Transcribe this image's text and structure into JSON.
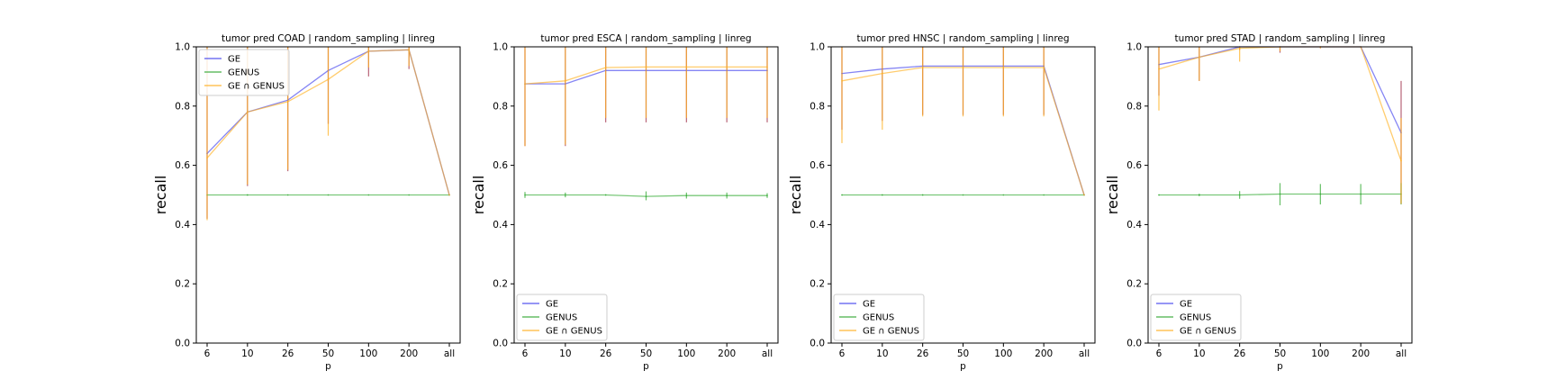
{
  "figure": {
    "background": "#ffffff"
  },
  "colors": {
    "GE": "#4444ee",
    "GENUS": "#33aa33",
    "GE ∩ GENUS": "#ffb020",
    "errorbar_GE": "#a0304a"
  },
  "chart_data": [
    {
      "type": "line",
      "title": "tumor pred COAD | random_sampling | linreg",
      "xlabel": "p",
      "ylabel": "recall",
      "categories": [
        "6",
        "10",
        "26",
        "50",
        "100",
        "200",
        "all"
      ],
      "ylim": [
        0.0,
        1.0
      ],
      "yticks": [
        "0.0",
        "0.2",
        "0.4",
        "0.6",
        "0.8",
        "1.0"
      ],
      "legend_position": "upper-left",
      "grid": false,
      "series": [
        {
          "name": "GE",
          "values": [
            0.64,
            0.78,
            0.82,
            0.92,
            0.985,
            0.99,
            0.5
          ],
          "err_low": [
            0.42,
            0.53,
            0.58,
            0.74,
            0.9,
            0.925,
            0.5
          ],
          "err_high": [
            1.0,
            1.0,
            1.0,
            1.0,
            1.0,
            1.0,
            0.5
          ]
        },
        {
          "name": "GENUS",
          "values": [
            0.5,
            0.5,
            0.5,
            0.5,
            0.5,
            0.5,
            0.5
          ],
          "err_low": [
            0.5,
            0.498,
            0.5,
            0.5,
            0.5,
            0.5,
            0.5
          ],
          "err_high": [
            0.5,
            0.502,
            0.5,
            0.5,
            0.5,
            0.5,
            0.5
          ]
        },
        {
          "name": "GE ∩ GENUS",
          "values": [
            0.625,
            0.78,
            0.815,
            0.89,
            0.985,
            0.99,
            0.5
          ],
          "err_low": [
            0.415,
            0.535,
            0.585,
            0.7,
            0.93,
            0.935,
            0.5
          ],
          "err_high": [
            1.0,
            1.0,
            1.0,
            1.0,
            1.0,
            1.0,
            0.5
          ]
        }
      ]
    },
    {
      "type": "line",
      "title": "tumor pred ESCA | random_sampling | linreg",
      "xlabel": "p",
      "ylabel": "recall",
      "categories": [
        "6",
        "10",
        "26",
        "50",
        "100",
        "200",
        "all"
      ],
      "ylim": [
        0.0,
        1.0
      ],
      "yticks": [
        "0.0",
        "0.2",
        "0.4",
        "0.6",
        "0.8",
        "1.0"
      ],
      "legend_position": "lower-left",
      "grid": false,
      "series": [
        {
          "name": "GE",
          "values": [
            0.875,
            0.875,
            0.92,
            0.92,
            0.92,
            0.92,
            0.92
          ],
          "err_low": [
            0.665,
            0.665,
            0.745,
            0.745,
            0.745,
            0.745,
            0.745
          ],
          "err_high": [
            1.0,
            1.0,
            1.0,
            1.0,
            1.0,
            1.0,
            1.0
          ]
        },
        {
          "name": "GENUS",
          "values": [
            0.5,
            0.5,
            0.5,
            0.495,
            0.498,
            0.498,
            0.498
          ],
          "err_low": [
            0.49,
            0.492,
            0.498,
            0.482,
            0.488,
            0.488,
            0.49
          ],
          "err_high": [
            0.51,
            0.508,
            0.502,
            0.512,
            0.508,
            0.508,
            0.506
          ]
        },
        {
          "name": "GE ∩ GENUS",
          "values": [
            0.875,
            0.885,
            0.93,
            0.932,
            0.932,
            0.932,
            0.932
          ],
          "err_low": [
            0.665,
            0.67,
            0.76,
            0.76,
            0.76,
            0.76,
            0.76
          ],
          "err_high": [
            1.0,
            1.0,
            1.0,
            1.0,
            1.0,
            1.0,
            1.0
          ]
        }
      ]
    },
    {
      "type": "line",
      "title": "tumor pred HNSC | random_sampling | linreg",
      "xlabel": "p",
      "ylabel": "recall",
      "categories": [
        "6",
        "10",
        "26",
        "50",
        "100",
        "200",
        "all"
      ],
      "ylim": [
        0.0,
        1.0
      ],
      "yticks": [
        "0.0",
        "0.2",
        "0.4",
        "0.6",
        "0.8",
        "1.0"
      ],
      "legend_position": "lower-left",
      "grid": false,
      "series": [
        {
          "name": "GE",
          "values": [
            0.91,
            0.925,
            0.935,
            0.935,
            0.935,
            0.935,
            0.5
          ],
          "err_low": [
            0.72,
            0.75,
            0.77,
            0.77,
            0.77,
            0.77,
            0.5
          ],
          "err_high": [
            1.0,
            1.0,
            1.0,
            1.0,
            1.0,
            1.0,
            0.5
          ]
        },
        {
          "name": "GENUS",
          "values": [
            0.5,
            0.5,
            0.5,
            0.5,
            0.5,
            0.5,
            0.5
          ],
          "err_low": [
            0.498,
            0.498,
            0.498,
            0.5,
            0.5,
            0.5,
            0.5
          ],
          "err_high": [
            0.502,
            0.502,
            0.502,
            0.5,
            0.5,
            0.5,
            0.5
          ]
        },
        {
          "name": "GE ∩ GENUS",
          "values": [
            0.885,
            0.91,
            0.93,
            0.93,
            0.93,
            0.93,
            0.5
          ],
          "err_low": [
            0.675,
            0.72,
            0.765,
            0.765,
            0.765,
            0.765,
            0.5
          ],
          "err_high": [
            1.0,
            1.0,
            1.0,
            1.0,
            1.0,
            1.0,
            0.5
          ]
        }
      ]
    },
    {
      "type": "line",
      "title": "tumor pred STAD | random_sampling | linreg",
      "xlabel": "p",
      "ylabel": "recall",
      "categories": [
        "6",
        "10",
        "26",
        "50",
        "100",
        "200",
        "all"
      ],
      "ylim": [
        0.0,
        1.0
      ],
      "yticks": [
        "0.0",
        "0.2",
        "0.4",
        "0.6",
        "0.8",
        "1.0"
      ],
      "legend_position": "lower-left",
      "grid": false,
      "series": [
        {
          "name": "GE",
          "values": [
            0.94,
            0.965,
            1.0,
            1.0,
            1.0,
            1.0,
            0.71
          ],
          "err_low": [
            0.835,
            0.885,
            0.99,
            0.98,
            0.995,
            1.0,
            0.47
          ],
          "err_high": [
            1.0,
            1.0,
            1.0,
            1.0,
            1.0,
            1.0,
            0.885
          ]
        },
        {
          "name": "GENUS",
          "values": [
            0.5,
            0.5,
            0.5,
            0.503,
            0.503,
            0.503,
            0.503
          ],
          "err_low": [
            0.498,
            0.496,
            0.487,
            0.465,
            0.468,
            0.468,
            0.468
          ],
          "err_high": [
            0.502,
            0.504,
            0.513,
            0.54,
            0.537,
            0.537,
            0.54
          ]
        },
        {
          "name": "GE ∩ GENUS",
          "values": [
            0.925,
            0.965,
            0.995,
            1.0,
            1.0,
            1.0,
            0.615
          ],
          "err_low": [
            0.785,
            0.885,
            0.95,
            0.985,
            0.995,
            1.0,
            0.47
          ],
          "err_high": [
            1.0,
            1.0,
            1.0,
            1.0,
            1.0,
            1.0,
            0.76
          ]
        }
      ]
    }
  ]
}
